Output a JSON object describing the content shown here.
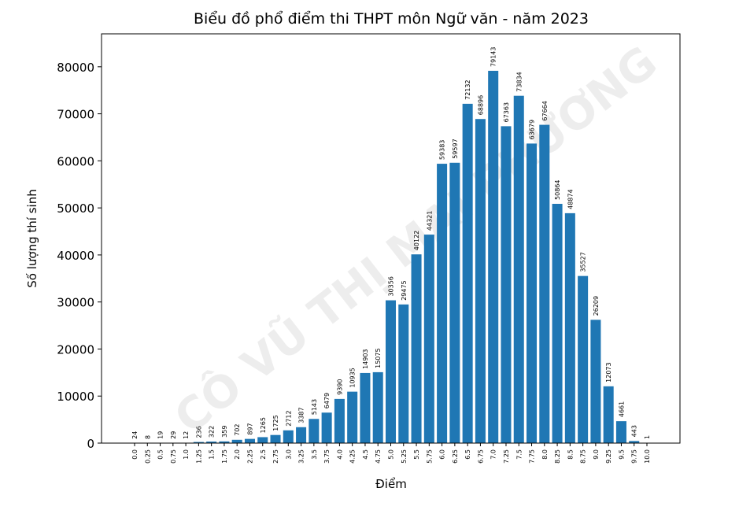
{
  "chart_data": {
    "type": "bar",
    "title": "Biểu đồ phổ điểm thi THPT môn Ngữ văn - năm 2023",
    "x_label": "Điểm",
    "y_label": "Số lượng thí sinh",
    "watermark": "CÔ VŨ THỊ MAI PHƯƠNG",
    "categories": [
      "0.0",
      "0.25",
      "0.5",
      "0.75",
      "1.0",
      "1.25",
      "1.5",
      "1.75",
      "2.0",
      "2.25",
      "2.5",
      "2.75",
      "3.0",
      "3.25",
      "3.5",
      "3.75",
      "4.0",
      "4.25",
      "4.5",
      "4.75",
      "5.0",
      "5.25",
      "5.5",
      "5.75",
      "6.0",
      "6.25",
      "6.5",
      "6.75",
      "7.0",
      "7.25",
      "7.5",
      "7.75",
      "8.0",
      "8.25",
      "8.5",
      "8.75",
      "9.0",
      "9.25",
      "9.5",
      "9.75",
      "10.0"
    ],
    "values": [
      24,
      8,
      19,
      29,
      12,
      236,
      322,
      359,
      702,
      897,
      1265,
      1725,
      2712,
      3387,
      5143,
      6479,
      9390,
      10935,
      14903,
      15075,
      30356,
      29475,
      40122,
      44321,
      59383,
      59597,
      72132,
      68896,
      79143,
      67363,
      73834,
      63679,
      67664,
      50864,
      48874,
      35527,
      26209,
      12073,
      4661,
      443,
      1
    ],
    "color": "#1f77b4",
    "ylim": [
      0,
      87000
    ],
    "yticks": [
      0,
      10000,
      20000,
      30000,
      40000,
      50000,
      60000,
      70000,
      80000
    ]
  }
}
